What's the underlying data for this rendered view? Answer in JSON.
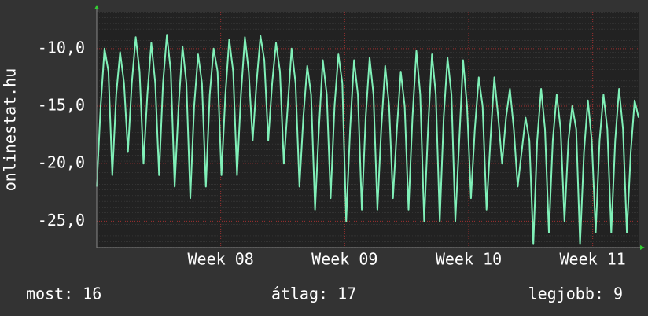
{
  "chart_data": {
    "type": "line",
    "y_label": "onlinestat.hu",
    "color": "#80f0b8",
    "grid": true,
    "ylim": [
      -27.3,
      -6.8
    ],
    "yticks": [
      {
        "value": -10,
        "label": "-10,0"
      },
      {
        "value": -15,
        "label": "-15,0"
      },
      {
        "value": -20,
        "label": "-20,0"
      },
      {
        "value": -25,
        "label": "-25,0"
      }
    ],
    "xlim": [
      7.0,
      11.37
    ],
    "xticks": [
      {
        "value": 8,
        "label": "Week 08"
      },
      {
        "value": 9,
        "label": "Week 09"
      },
      {
        "value": 10,
        "label": "Week 10"
      },
      {
        "value": 11,
        "label": "Week 11"
      }
    ],
    "values": [
      -22,
      -15,
      -10,
      -12,
      -21,
      -14,
      -10.3,
      -13,
      -19,
      -13,
      -9,
      -12,
      -20,
      -14,
      -9.5,
      -13,
      -21,
      -13,
      -8.8,
      -12,
      -22,
      -15,
      -9.8,
      -13,
      -23,
      -15,
      -10.5,
      -13,
      -22,
      -14,
      -10,
      -12,
      -21,
      -14,
      -9.2,
      -12,
      -21,
      -14,
      -9,
      -12,
      -18,
      -13,
      -8.9,
      -11,
      -18,
      -13,
      -9.5,
      -12,
      -20,
      -15,
      -10,
      -13,
      -22,
      -16,
      -11.5,
      -14,
      -24,
      -17,
      -11,
      -14,
      -23,
      -15,
      -10.5,
      -13,
      -25,
      -17,
      -11,
      -14,
      -24,
      -16,
      -10.8,
      -14,
      -24,
      -17,
      -11.5,
      -15,
      -23,
      -17,
      -12,
      -15,
      -24,
      -16,
      -10.2,
      -14,
      -25,
      -17,
      -10.5,
      -14,
      -25,
      -16,
      -10.8,
      -14,
      -25,
      -18,
      -11,
      -15,
      -23,
      -17,
      -12.5,
      -15,
      -24,
      -18,
      -12.5,
      -16,
      -20,
      -16,
      -13.5,
      -17,
      -22,
      -19,
      -16,
      -18,
      -27,
      -18,
      -13.5,
      -17,
      -26,
      -18,
      -14,
      -17,
      -25,
      -18,
      -15,
      -17,
      -27,
      -19,
      -14.5,
      -18,
      -26,
      -18,
      -14,
      -17,
      -26,
      -18,
      -13.5,
      -17,
      -26,
      -19,
      -14.5,
      -16
    ],
    "footer": [
      "most: 16",
      "átlag: 17",
      "legjobb: 9"
    ]
  }
}
